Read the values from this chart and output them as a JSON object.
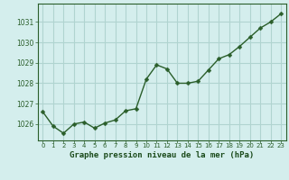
{
  "hours": [
    0,
    1,
    2,
    3,
    4,
    5,
    6,
    7,
    8,
    9,
    10,
    11,
    12,
    13,
    14,
    15,
    16,
    17,
    18,
    19,
    20,
    21,
    22,
    23
  ],
  "pressure": [
    1026.6,
    1025.9,
    1025.55,
    1026.0,
    1026.1,
    1025.8,
    1026.05,
    1026.2,
    1026.65,
    1026.75,
    1028.2,
    1028.9,
    1028.7,
    1028.0,
    1028.0,
    1028.1,
    1028.65,
    1029.2,
    1029.4,
    1029.8,
    1030.25,
    1030.7,
    1031.0,
    1031.4
  ],
  "line_color": "#2a5e2a",
  "marker_color": "#2a5e2a",
  "bg_color": "#d4eeed",
  "grid_color": "#b0d4d0",
  "xlabel": "Graphe pression niveau de la mer (hPa)",
  "xlabel_color": "#1a4a1a",
  "ylabel_ticks": [
    1026,
    1027,
    1028,
    1029,
    1030,
    1031
  ],
  "ylim": [
    1025.2,
    1031.9
  ],
  "xlim": [
    -0.5,
    23.5
  ],
  "tick_color": "#2a5e2a",
  "spine_color": "#2a5e2a"
}
